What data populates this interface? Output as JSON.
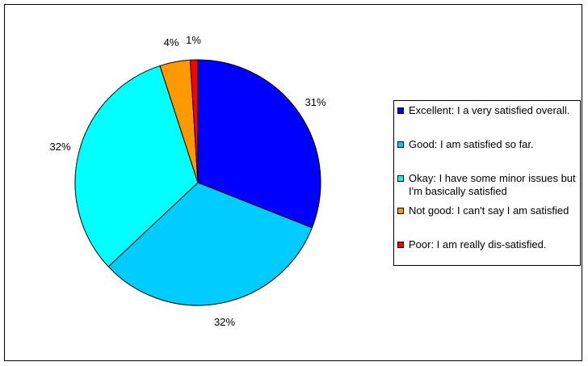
{
  "chart_data": {
    "type": "pie",
    "title": "",
    "slices": [
      {
        "label": "Excellent: I a very satisfied overall.",
        "value": 31,
        "value_label": "31%",
        "color": "#0000FF"
      },
      {
        "label": "Good: I am satisfied so far.",
        "value": 32,
        "value_label": "32%",
        "color": "#00CCFF"
      },
      {
        "label": "Okay: I have some minor issues but I'm basically satisfied",
        "value": 32,
        "value_label": "32%",
        "color": "#00FFFF"
      },
      {
        "label": "Not good: I can't say I am satisfied",
        "value": 4,
        "value_label": "4%",
        "color": "#FF9900"
      },
      {
        "label": "Poor: I am really dis-satisfied.",
        "value": 1,
        "value_label": "1%",
        "color": "#FF0000"
      }
    ],
    "legend_position": "right",
    "start_angle": "top",
    "direction": "clockwise"
  }
}
